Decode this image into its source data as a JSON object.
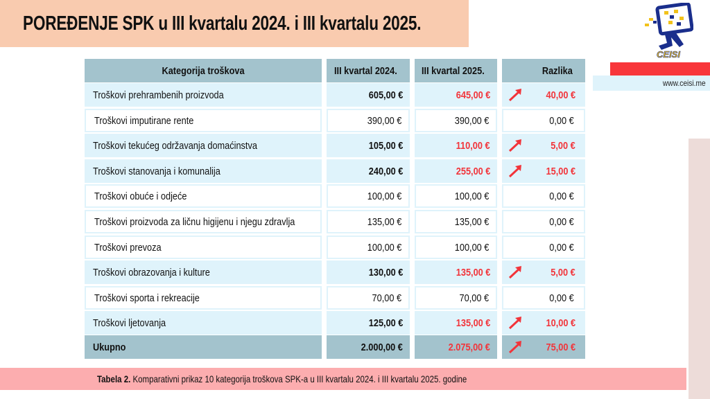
{
  "title": "POREĐENJE SPK u III kvartalu 2024. i III kvartalu 2025.",
  "logo_text": "CEISI",
  "url": "www.ceisi.me",
  "colors": {
    "accent_red": "#f2343a",
    "header_bg": "#a3c3cd",
    "row_bg": "#dff3fb",
    "title_bg": "#f9cbaf",
    "caption_bg": "#fcadaf"
  },
  "table": {
    "headers": [
      "Kategorija troškova",
      "III kvartal 2024.",
      "III kvartal 2025.",
      "Razlika"
    ],
    "rows": [
      {
        "name": "Troškovi prehrambenih proizvoda",
        "q2024": "605,00 €",
        "q2025": "645,00 €",
        "diff": "40,00 €",
        "increase": true
      },
      {
        "name": "Troškovi imputirane rente",
        "q2024": "390,00 €",
        "q2025": "390,00 €",
        "diff": "0,00 €",
        "increase": false
      },
      {
        "name": "Troškovi tekućeg održavanja domaćinstva",
        "q2024": "105,00 €",
        "q2025": "110,00 €",
        "diff": "5,00 €",
        "increase": true
      },
      {
        "name": "Troškovi stanovanja i komunalija",
        "q2024": "240,00 €",
        "q2025": "255,00 €",
        "diff": "15,00 €",
        "increase": true
      },
      {
        "name": "Troškovi obuće i odjeće",
        "q2024": "100,00 €",
        "q2025": "100,00 €",
        "diff": "0,00 €",
        "increase": false
      },
      {
        "name": "Troškovi proizvoda za ličnu higijenu i njegu zdravlja",
        "q2024": "135,00 €",
        "q2025": "135,00 €",
        "diff": "0,00 €",
        "increase": false
      },
      {
        "name": "Troškovi prevoza",
        "q2024": "100,00 €",
        "q2025": "100,00 €",
        "diff": "0,00 €",
        "increase": false
      },
      {
        "name": "Troškovi obrazovanja i kulture",
        "q2024": "130,00 €",
        "q2025": "135,00 €",
        "diff": "5,00 €",
        "increase": true
      },
      {
        "name": "Troškovi sporta i rekreacije",
        "q2024": "70,00 €",
        "q2025": "70,00 €",
        "diff": "0,00 €",
        "increase": false
      },
      {
        "name": "Troškovi ljetovanja",
        "q2024": "125,00 €",
        "q2025": "135,00 €",
        "diff": "10,00 €",
        "increase": true
      }
    ],
    "total": {
      "name": "Ukupno",
      "q2024": "2.000,00 €",
      "q2025": "2.075,00 €",
      "diff": "75,00 €",
      "increase": true
    }
  },
  "caption": {
    "label": "Tabela 2.",
    "text": " Komparativni prikaz 10 kategorija troškova SPK-a u III kvartalu 2024. i III kvartalu 2025. godine"
  }
}
